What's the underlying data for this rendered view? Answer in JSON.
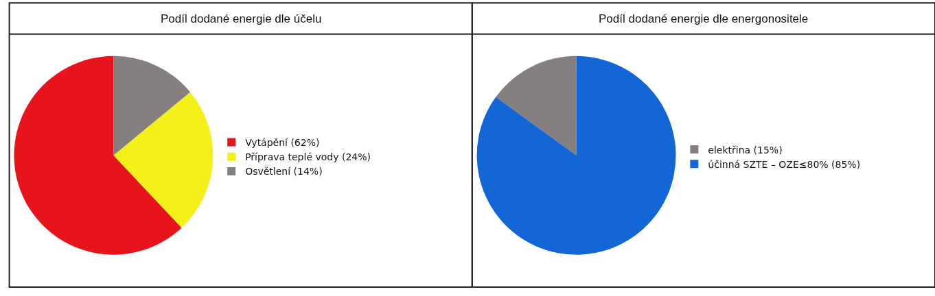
{
  "chart_data": [
    {
      "type": "pie",
      "title": "Podíl dodané energie dle účelu",
      "categories": [
        "Vytápění (62%)",
        "Příprava teplé vody (24%)",
        "Osvětlení (14%)"
      ],
      "values": [
        62,
        24,
        14
      ],
      "colors": [
        "#e8141c",
        "#f5ef1a",
        "#857f7f"
      ],
      "legend": "right"
    },
    {
      "type": "pie",
      "title": "Podíl dodané energie dle energonositele",
      "categories": [
        "elektřina (15%)",
        "účinná SZTE – OZE≤80% (85%)"
      ],
      "values": [
        15,
        85
      ],
      "colors": [
        "#857f7f",
        "#1366d6"
      ],
      "legend": "right"
    }
  ]
}
